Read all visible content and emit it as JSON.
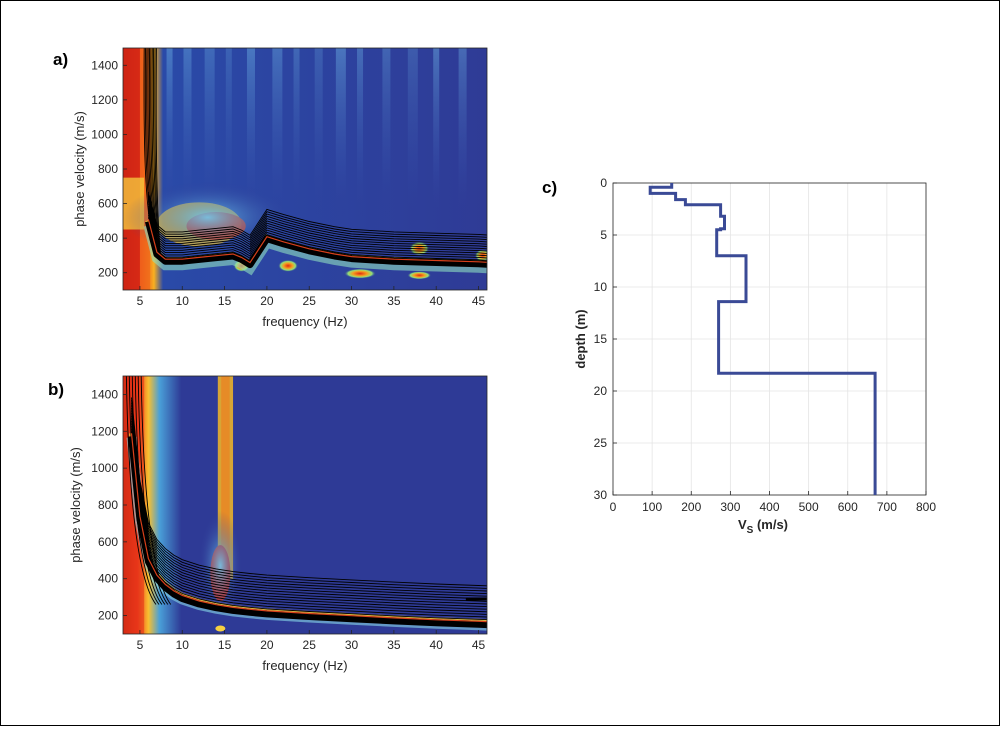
{
  "panels": {
    "a": {
      "label": "a)"
    },
    "b": {
      "label": "b)"
    },
    "c": {
      "label": "c)"
    }
  },
  "chart_data": [
    {
      "type": "heatmap",
      "panel": "a)",
      "xlabel": "frequency (Hz)",
      "ylabel": "phase velocity (m/s)",
      "xlim": [
        3,
        46
      ],
      "ylim": [
        100,
        1500
      ],
      "xticks": [
        5,
        10,
        15,
        20,
        25,
        30,
        35,
        40,
        45
      ],
      "yticks": [
        200,
        400,
        600,
        800,
        1000,
        1200,
        1400
      ],
      "colormap": "jet",
      "overlay": "black modal dispersion curves",
      "dispersion_ridge": {
        "x": [
          6,
          7,
          8,
          10,
          12,
          14,
          16,
          17,
          18,
          20,
          22,
          25,
          28,
          30,
          35,
          40,
          45,
          46
        ],
        "y": [
          520,
          330,
          290,
          290,
          300,
          310,
          320,
          300,
          270,
          420,
          390,
          350,
          320,
          305,
          290,
          282,
          275,
          272
        ]
      }
    },
    {
      "type": "heatmap",
      "panel": "b)",
      "xlabel": "frequency (Hz)",
      "ylabel": "phase velocity (m/s)",
      "xlim": [
        3,
        46
      ],
      "ylim": [
        100,
        1500
      ],
      "xticks": [
        5,
        10,
        15,
        20,
        25,
        30,
        35,
        40,
        45
      ],
      "yticks": [
        200,
        400,
        600,
        800,
        1000,
        1200,
        1400
      ],
      "colormap": "jet",
      "overlay": "black modal dispersion curves",
      "dispersion_ridge": {
        "x": [
          4,
          5,
          6,
          7,
          8,
          9,
          10,
          12,
          14,
          16,
          18,
          20,
          25,
          30,
          35,
          40,
          45,
          46
        ],
        "y": [
          1200,
          750,
          520,
          430,
          380,
          345,
          320,
          290,
          270,
          255,
          245,
          236,
          222,
          210,
          198,
          188,
          180,
          178
        ]
      }
    },
    {
      "type": "line",
      "panel": "c)",
      "xlabel_main": "V",
      "xlabel_sub": "S",
      "xlabel_unit": " (m/s)",
      "ylabel": "depth (m)",
      "xlim": [
        0,
        800
      ],
      "ylim": [
        0,
        30
      ],
      "y_reversed": true,
      "xticks": [
        0,
        100,
        200,
        300,
        400,
        500,
        600,
        700,
        800
      ],
      "yticks": [
        0,
        5,
        10,
        15,
        20,
        25,
        30
      ],
      "grid": true,
      "color": "#3a4a96",
      "series": [
        {
          "x": [
            150,
            150,
            95,
            95,
            160,
            160,
            185,
            185,
            200,
            200,
            275,
            275,
            285,
            285,
            275,
            275,
            265,
            265,
            340,
            340,
            270,
            270,
            670,
            670
          ],
          "y": [
            0,
            0.4,
            0.4,
            1.0,
            1.0,
            1.6,
            1.6,
            2.1,
            2.1,
            2.1,
            2.1,
            3.2,
            3.2,
            4.4,
            4.4,
            4.5,
            4.5,
            7.0,
            7.0,
            11.4,
            11.4,
            18.3,
            18.3,
            30
          ]
        }
      ]
    }
  ]
}
